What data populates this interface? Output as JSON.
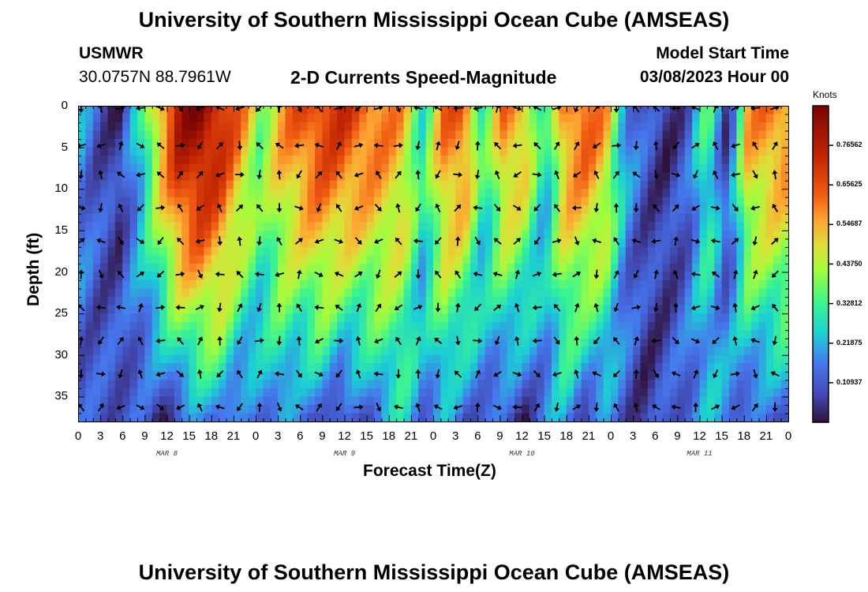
{
  "title": "University of Southern Mississippi Ocean Cube (AMSEAS)",
  "footer_title": "University of Southern Mississippi Ocean Cube (AMSEAS)",
  "station": {
    "name": "USMWR",
    "coords": "30.0757N  88.7961W"
  },
  "model_start": {
    "label": "Model Start Time",
    "value": "03/08/2023 Hour 00"
  },
  "chart_data": {
    "type": "heatmap",
    "title": "2-D Currents Speed-Magnitude",
    "xlabel": "Forecast Time(Z)",
    "ylabel": "Depth (ft)",
    "x_tick_labels": [
      "0",
      "3",
      "6",
      "9",
      "12",
      "15",
      "18",
      "21",
      "0",
      "3",
      "6",
      "9",
      "12",
      "15",
      "18",
      "21",
      "0",
      "3",
      "6",
      "9",
      "12",
      "15",
      "18",
      "21",
      "0",
      "3",
      "6",
      "9",
      "12",
      "15",
      "18",
      "21",
      "0"
    ],
    "x_range_hours": [
      0,
      96
    ],
    "date_labels": [
      {
        "text": "MAR 8",
        "hour": 12
      },
      {
        "text": "MAR 9",
        "hour": 36
      },
      {
        "text": "MAR 10",
        "hour": 60
      },
      {
        "text": "MAR 11",
        "hour": 84
      }
    ],
    "y_ticks": [
      0,
      5,
      10,
      15,
      20,
      25,
      30,
      35
    ],
    "y_range_ft": [
      0,
      38
    ],
    "colorbar": {
      "label": "Knots",
      "range": [
        0,
        0.875
      ],
      "tick_labels": [
        "0.76562",
        "0.65625",
        "0.54687",
        "0.43750",
        "0.32812",
        "0.21875",
        "0.10937"
      ],
      "tick_values": [
        0.765625,
        0.65625,
        0.546875,
        0.4375,
        0.328125,
        0.21875,
        0.109375
      ]
    },
    "vector_depths_ft": [
      0,
      4.5,
      8,
      12,
      16,
      20,
      24,
      28,
      32,
      36
    ],
    "speed_by_hour_surface": [
      0.2,
      0.1,
      0.05,
      0.25,
      0.55,
      0.8,
      0.85,
      0.75,
      0.6,
      0.4,
      0.55,
      0.65,
      0.7,
      0.7,
      0.65,
      0.6,
      0.55,
      0.3,
      0.6,
      0.65,
      0.3,
      0.6,
      0.55,
      0.25,
      0.6,
      0.65,
      0.55,
      0.2,
      0.1,
      0.05,
      0.1,
      0.35,
      0.05,
      0.55,
      0.6,
      0.6
    ],
    "speed_by_hour_deep": [
      0.1,
      0.1,
      0.12,
      0.1,
      0.05,
      0.1,
      0.15,
      0.2,
      0.1,
      0.15,
      0.2,
      0.1,
      0.15,
      0.05,
      0.1,
      0.2,
      0.25,
      0.15,
      0.2,
      0.1,
      0.15,
      0.08,
      0.05,
      0.15,
      0.2,
      0.1,
      0.15,
      0.1,
      0.05,
      0.1,
      0.15,
      0.2,
      0.2,
      0.12,
      0.1,
      0.15
    ]
  }
}
